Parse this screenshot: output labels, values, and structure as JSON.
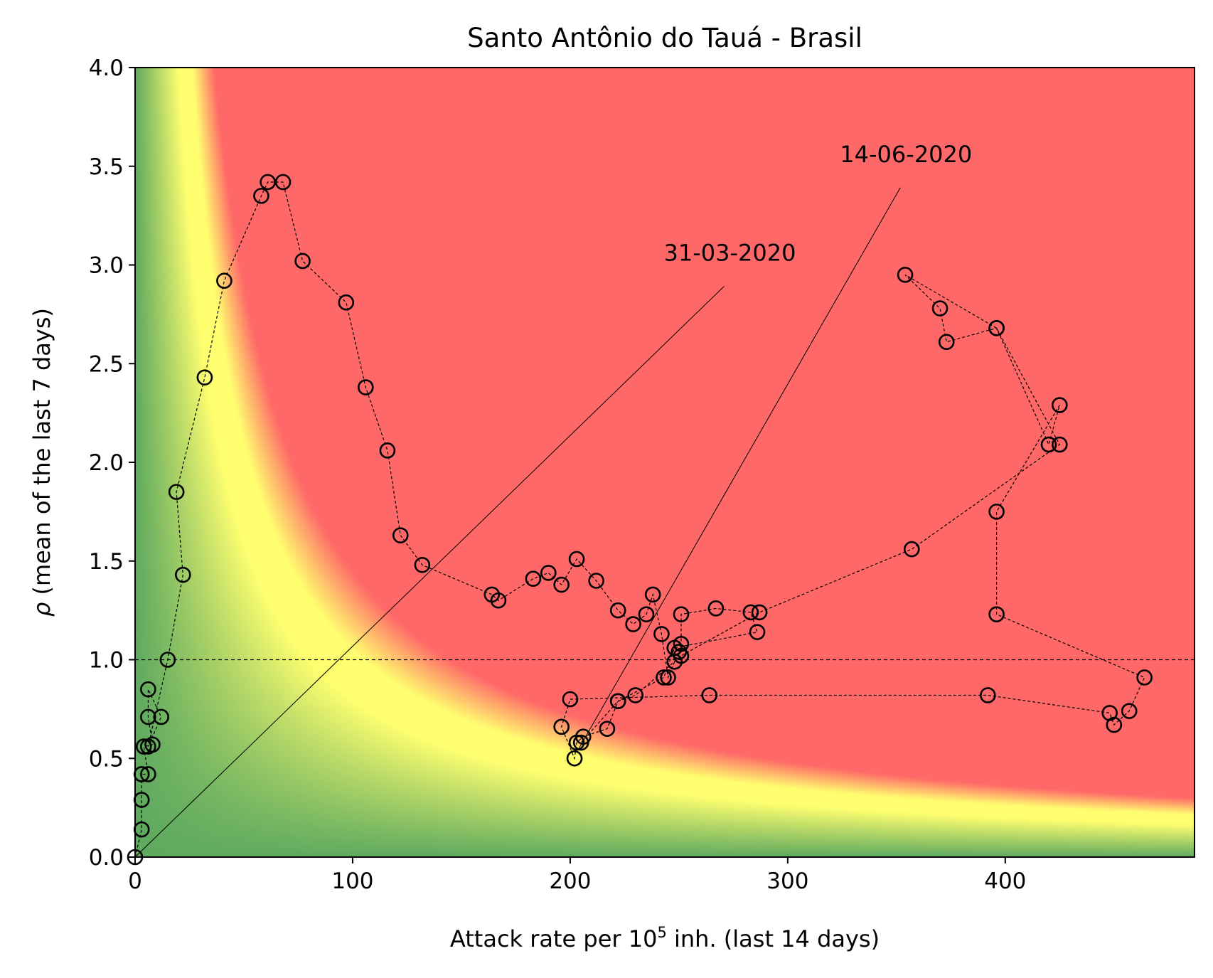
{
  "chart_data": {
    "type": "scatter",
    "title": "Santo Antônio do Tauá - Brasil",
    "xlabel": {
      "prefix": "Attack rate per 10",
      "superscript": "5",
      "suffix": " inh. (last 14 days)"
    },
    "ylabel": {
      "symbol": "ρ",
      "text": " (mean of the last 7 days)"
    },
    "xlim": [
      0,
      487
    ],
    "ylim": [
      0,
      4.0
    ],
    "xticks": [
      "0",
      "100",
      "200",
      "300",
      "400"
    ],
    "yticks": [
      "0.0",
      "0.5",
      "1.0",
      "1.5",
      "2.0",
      "2.5",
      "3.0",
      "3.5",
      "4.0"
    ],
    "reference_line_y": 1.0,
    "background": "risk gradient: green (low) → yellow → red (high), level depends on attack rate × ρ",
    "colors": {
      "low": "#5faa5f",
      "mid": "#ffff70",
      "high": "#ff6868",
      "marker_edge": "#000000"
    },
    "annotations": [
      {
        "text": "31-03-2020",
        "xy": [
          0,
          0
        ],
        "text_xy": [
          243,
          3.0
        ]
      },
      {
        "text": "14-06-2020",
        "xy": [
          204,
          0.55
        ],
        "text_xy": [
          324,
          3.5
        ]
      }
    ],
    "series": [
      {
        "x": [
          0,
          3,
          3,
          3,
          6,
          4,
          8,
          6,
          6,
          12,
          6,
          15,
          22,
          19,
          32,
          41,
          58,
          61,
          68,
          77,
          97,
          106,
          116,
          122,
          132,
          164,
          167,
          183,
          190,
          196,
          203,
          212,
          222,
          229,
          235,
          238,
          242,
          245,
          248,
          250,
          251,
          251,
          267,
          283,
          286,
          248,
          243,
          222,
          217,
          206,
          203,
          202,
          196,
          200,
          264,
          392,
          448,
          450,
          457,
          464,
          396,
          396,
          425,
          420,
          396,
          373,
          370,
          354,
          396,
          425,
          357,
          287,
          251,
          230,
          222,
          205
        ],
        "y": [
          0,
          0.14,
          0.29,
          0.42,
          0.42,
          0.56,
          0.57,
          0.71,
          0.85,
          0.71,
          0.56,
          1.0,
          1.43,
          1.85,
          2.43,
          2.92,
          3.35,
          3.42,
          3.42,
          3.02,
          2.81,
          2.38,
          2.06,
          1.63,
          1.48,
          1.33,
          1.3,
          1.41,
          1.44,
          1.38,
          1.51,
          1.4,
          1.25,
          1.18,
          1.23,
          1.33,
          1.13,
          0.91,
          0.99,
          1.04,
          1.08,
          1.23,
          1.26,
          1.24,
          1.14,
          1.06,
          0.91,
          0.79,
          0.65,
          0.61,
          0.58,
          0.5,
          0.66,
          0.8,
          0.82,
          0.82,
          0.73,
          0.67,
          0.74,
          0.91,
          1.23,
          1.75,
          2.29,
          2.09,
          2.68,
          2.61,
          2.78,
          2.95,
          2.68,
          2.09,
          1.56,
          1.24,
          1.02,
          0.82,
          0.79,
          0.58
        ]
      }
    ]
  }
}
